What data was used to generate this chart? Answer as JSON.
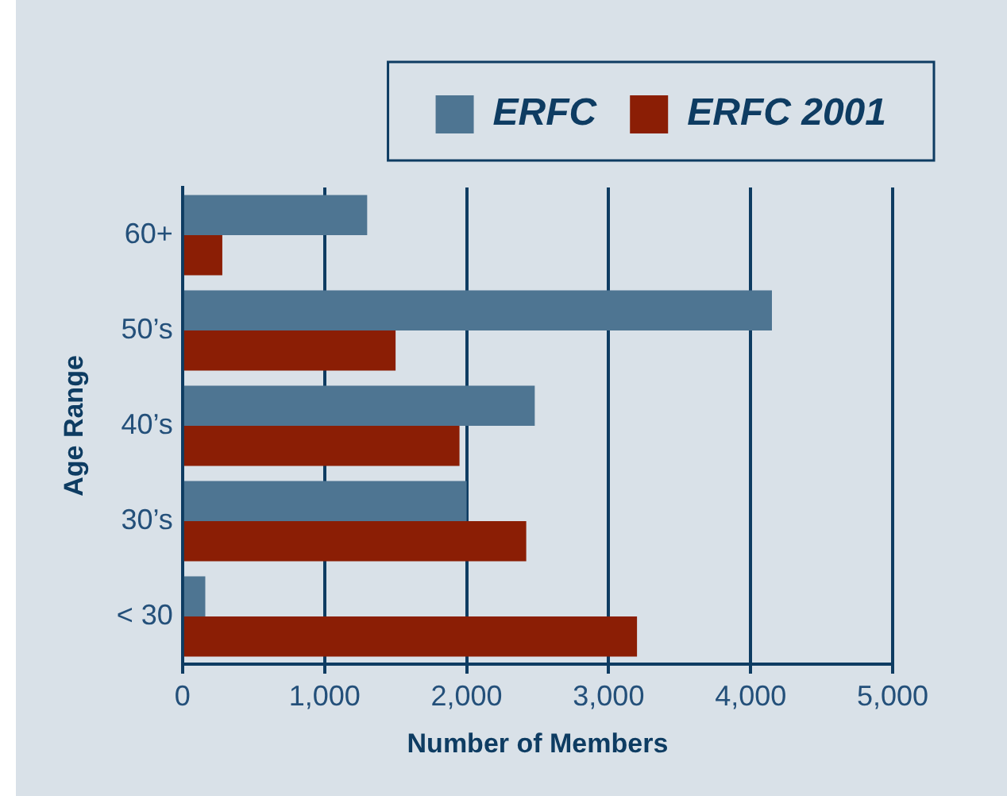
{
  "chart_data": {
    "type": "bar",
    "orientation": "horizontal",
    "categories": [
      "60+",
      "50’s",
      "40’s",
      "30’s",
      "< 30"
    ],
    "series": [
      {
        "name": "ERFC",
        "color": "#4e7592",
        "values": [
          1300,
          4150,
          2480,
          2000,
          160
        ]
      },
      {
        "name": "ERFC 2001",
        "color": "#8b1e05",
        "values": [
          280,
          1500,
          1950,
          2420,
          3200
        ]
      }
    ],
    "xlim": [
      0,
      5000
    ],
    "xticks": [
      0,
      {
        "value": 1000,
        "label": "1,000"
      },
      {
        "value": 2000,
        "label": "2,000"
      },
      {
        "value": 3000,
        "label": "3,000"
      },
      {
        "value": 4000,
        "label": "4,000"
      },
      {
        "value": 5000,
        "label": "5,000"
      }
    ],
    "xlabel": "Number of Members",
    "ylabel": "Age Range",
    "grid": "x",
    "legend": "top right"
  }
}
